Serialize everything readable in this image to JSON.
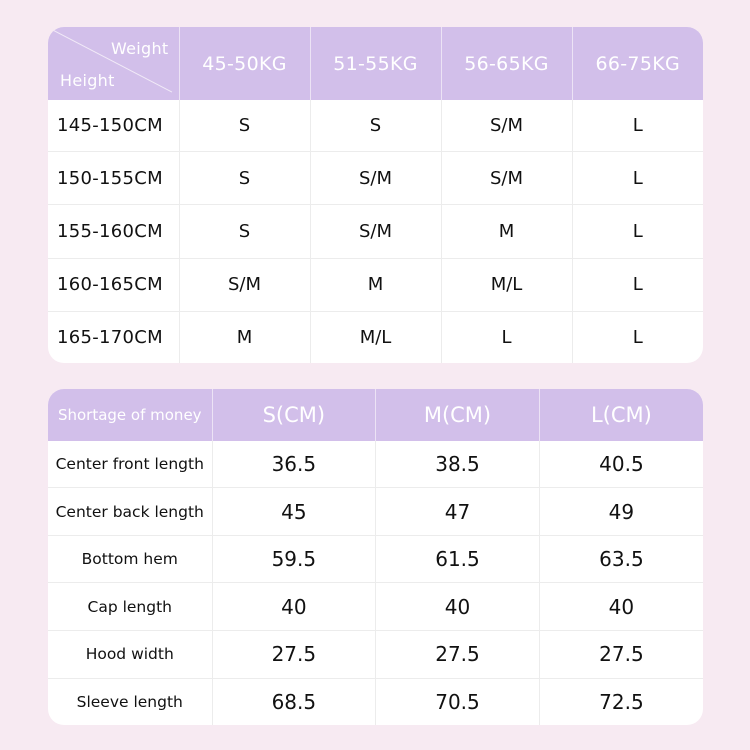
{
  "size_chart": {
    "corner": {
      "weight_label": "Weight",
      "height_label": "Height"
    },
    "columns": [
      "45-50KG",
      "51-55KG",
      "56-65KG",
      "66-75KG"
    ],
    "rows": [
      {
        "height": "145-150CM",
        "sizes": [
          "S",
          "S",
          "S/M",
          "L"
        ]
      },
      {
        "height": "150-155CM",
        "sizes": [
          "S",
          "S/M",
          "S/M",
          "L"
        ]
      },
      {
        "height": "155-160CM",
        "sizes": [
          "S",
          "S/M",
          "M",
          "L"
        ]
      },
      {
        "height": "160-165CM",
        "sizes": [
          "S/M",
          "M",
          "M/L",
          "L"
        ]
      },
      {
        "height": "165-170CM",
        "sizes": [
          "M",
          "M/L",
          "L",
          "L"
        ]
      }
    ]
  },
  "measurement_chart": {
    "corner_label": "Shortage of money",
    "columns": [
      "S(CM)",
      "M(CM)",
      "L(CM)"
    ],
    "rows": [
      {
        "name": "Center front length",
        "values": [
          "36.5",
          "38.5",
          "40.5"
        ]
      },
      {
        "name": "Center back length",
        "values": [
          "45",
          "47",
          "49"
        ]
      },
      {
        "name": "Bottom hem",
        "values": [
          "59.5",
          "61.5",
          "63.5"
        ]
      },
      {
        "name": "Cap length",
        "values": [
          "40",
          "40",
          "40"
        ]
      },
      {
        "name": "Hood width",
        "values": [
          "27.5",
          "27.5",
          "27.5"
        ]
      },
      {
        "name": "Sleeve length",
        "values": [
          "68.5",
          "70.5",
          "72.5"
        ]
      }
    ]
  },
  "colors": {
    "header_bg": "#d2bfea",
    "page_bg": "#f7eaf2"
  }
}
